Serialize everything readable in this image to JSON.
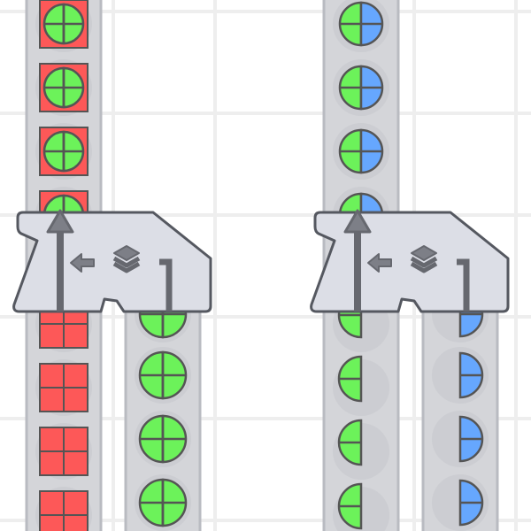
{
  "scene": {
    "game": "shape factory",
    "colors": {
      "background": "#ffffff",
      "grid": "#ececec",
      "belt": "#d4d5d9",
      "belt_edge": "#b9bbc1",
      "machine_body": "#dcdee6",
      "machine_outline": "#555860",
      "machine_icon": "#7d7f87",
      "shape_green": "#6cf25a",
      "shape_red": "#fd5858",
      "shape_blue": "#66a7fe",
      "shape_outline": "#555555"
    },
    "machines": [
      {
        "type": "stacker",
        "icon": "layers-icon",
        "input_shape": "green-circle-on-red-square",
        "output_left": "red-square",
        "output_right": "green-circle"
      },
      {
        "type": "stacker",
        "icon": "layers-icon",
        "input_shape": "green-blue-split-circle",
        "output_left": "green-half-circle",
        "output_right": "blue-half-circle"
      }
    ]
  }
}
